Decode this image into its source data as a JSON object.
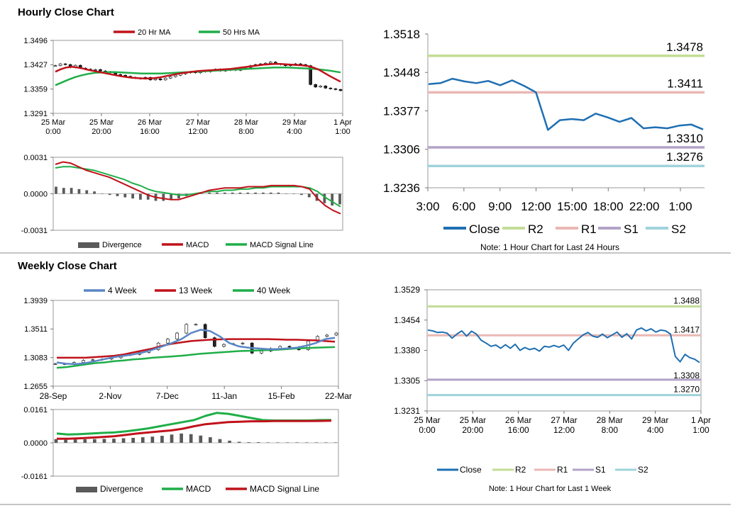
{
  "sections": {
    "hourly_title": "Hourly Close Chart",
    "weekly_title": "Weekly Close Chart"
  },
  "colors": {
    "ma20": "#c0121b",
    "ma50": "#1fae48",
    "close": "#1f6fb2",
    "r2": "#c3dd96",
    "r1": "#eab8b4",
    "s1": "#b3a3c7",
    "s2": "#9fd3dc",
    "wk4": "#5a86c5",
    "divergence": "#5a5a5a",
    "candle": "#000000"
  },
  "chart_data": [
    {
      "id": "hourly_price",
      "type": "candlestick",
      "ylim": [
        1.3291,
        1.3496
      ],
      "y_ticks": [
        "1.3496",
        "1.3427",
        "1.3359",
        "1.3291"
      ],
      "x_ticks": [
        [
          "25 Mar",
          "0:00"
        ],
        [
          "25 Mar",
          "20:00"
        ],
        [
          "26 Mar",
          "16:00"
        ],
        [
          "27 Mar",
          "12:00"
        ],
        [
          "28 Mar",
          "8:00"
        ],
        [
          "29 Mar",
          "4:00"
        ],
        [
          "1 Apr",
          "1:00"
        ]
      ],
      "legend": [
        "20 Hr MA",
        "50 Hrs MA"
      ],
      "close": [
        1.3425,
        1.343,
        1.3428,
        1.342,
        1.3426,
        1.3418,
        1.3415,
        1.3412,
        1.3414,
        1.341,
        1.3408,
        1.3405,
        1.34,
        1.3398,
        1.3395,
        1.3392,
        1.339,
        1.3388,
        1.3392,
        1.3385,
        1.3388,
        1.3385,
        1.339,
        1.3394,
        1.3398,
        1.3402,
        1.3405,
        1.3408,
        1.3405,
        1.341,
        1.3408,
        1.3412,
        1.3415,
        1.341,
        1.3412,
        1.3415,
        1.3412,
        1.3418,
        1.342,
        1.3425,
        1.3428,
        1.343,
        1.3432,
        1.3435,
        1.343,
        1.3428,
        1.3425,
        1.3427,
        1.343,
        1.3428,
        1.3425,
        1.3372,
        1.3365,
        1.3368,
        1.3362,
        1.336,
        1.3358,
        1.3355
      ],
      "ma20": [
        1.3408,
        1.3415,
        1.342,
        1.3422,
        1.342,
        1.3417,
        1.3413,
        1.341,
        1.3407,
        1.3404,
        1.3401,
        1.3398,
        1.3395,
        1.3393,
        1.3391,
        1.339,
        1.3389,
        1.3389,
        1.339,
        1.3392,
        1.3395,
        1.3398,
        1.3401,
        1.3404,
        1.3406,
        1.3408,
        1.341,
        1.3411,
        1.3412,
        1.3413,
        1.3414,
        1.3415,
        1.3416,
        1.3418,
        1.342,
        1.3422,
        1.3424,
        1.3426,
        1.3428,
        1.3429,
        1.343,
        1.343,
        1.3429,
        1.3428,
        1.3427,
        1.3426,
        1.3424,
        1.342,
        1.3414,
        1.3405,
        1.3396,
        1.3388,
        1.338
      ],
      "ma50": [
        1.337,
        1.3378,
        1.3386,
        1.3393,
        1.3398,
        1.3402,
        1.3405,
        1.3406,
        1.3407,
        1.3407,
        1.3406,
        1.3405,
        1.3404,
        1.3403,
        1.3403,
        1.3403,
        1.3403,
        1.3404,
        1.3405,
        1.3406,
        1.3407,
        1.3408,
        1.3409,
        1.341,
        1.3411,
        1.3412,
        1.3413,
        1.3414,
        1.3415,
        1.3416,
        1.3417,
        1.3418,
        1.3419,
        1.342,
        1.342,
        1.342,
        1.3419,
        1.3418,
        1.3417,
        1.3416,
        1.3414,
        1.3412,
        1.3409,
        1.3406
      ]
    },
    {
      "id": "hourly_macd",
      "type": "line+bar",
      "ylim": [
        -0.0031,
        0.0031
      ],
      "y_ticks": [
        "0.0031",
        "0.0000",
        "-0.0031"
      ],
      "legend": [
        "Divergence",
        "MACD",
        "MACD Signal Line"
      ],
      "macd": [
        0.0025,
        0.0027,
        0.0026,
        0.0023,
        0.002,
        0.0018,
        0.0016,
        0.0014,
        0.0011,
        0.0008,
        0.0005,
        0.0002,
        -0.0001,
        -0.0003,
        -0.0004,
        -0.0005,
        -0.0005,
        -0.0003,
        -0.0001,
        0.0001,
        0.0003,
        0.0004,
        0.0005,
        0.0005,
        0.0005,
        0.0006,
        0.0006,
        0.0006,
        0.0007,
        0.0007,
        0.0007,
        0.0007,
        0.0006,
        0.0004,
        -0.0004,
        -0.001,
        -0.0014,
        -0.0017
      ],
      "signal": [
        0.0022,
        0.0023,
        0.0023,
        0.0022,
        0.0021,
        0.002,
        0.0018,
        0.0016,
        0.0014,
        0.0012,
        0.0009,
        0.0007,
        0.0004,
        0.0002,
        0.0001,
        0.0,
        -0.0001,
        -0.0001,
        0.0,
        0.0001,
        0.0002,
        0.0002,
        0.0003,
        0.0003,
        0.0004,
        0.0004,
        0.0005,
        0.0005,
        0.0006,
        0.0006,
        0.0006,
        0.0006,
        0.0006,
        0.0005,
        0.0002,
        -0.0003,
        -0.0007,
        -0.0011
      ],
      "divergence": [
        0.0006,
        0.0005,
        0.0005,
        0.0004,
        0.0003,
        0.0002,
        0.0,
        -0.0001,
        -0.0002,
        -0.0003,
        -0.0004,
        -0.0005,
        -0.0005,
        -0.0006,
        -0.0006,
        -0.0005,
        -0.0004,
        -0.0002,
        -0.0001,
        0.0,
        0.0001,
        0.0001,
        0.0001,
        0.0001,
        0.0001,
        0.0001,
        0.0001,
        0.0001,
        0.0001,
        0.0001,
        0.0,
        0.0,
        -0.0001,
        -0.0003,
        -0.0006,
        -0.0008,
        -0.001,
        -0.0009
      ]
    },
    {
      "id": "hourly_24h",
      "type": "line",
      "ylim": [
        1.3236,
        1.3518
      ],
      "y_ticks": [
        "1.3518",
        "1.3448",
        "1.3377",
        "1.3306",
        "1.3236"
      ],
      "x_ticks": [
        "3:00",
        "6:00",
        "9:00",
        "12:00",
        "15:00",
        "18:00",
        "22:00",
        "1:00"
      ],
      "close": [
        1.3426,
        1.3428,
        1.3436,
        1.3431,
        1.3428,
        1.3432,
        1.3424,
        1.3433,
        1.3423,
        1.3411,
        1.3342,
        1.336,
        1.3362,
        1.336,
        1.3372,
        1.3365,
        1.3357,
        1.3364,
        1.3345,
        1.3347,
        1.3345,
        1.335,
        1.3352,
        1.3343
      ],
      "levels": [
        {
          "name": "R2",
          "value": 1.3478,
          "label": "1.3478"
        },
        {
          "name": "R1",
          "value": 1.3411,
          "label": "1.3411"
        },
        {
          "name": "S1",
          "value": 1.331,
          "label": "1.3310"
        },
        {
          "name": "S2",
          "value": 1.3276,
          "label": "1.3276"
        }
      ],
      "legend": [
        "Close",
        "R2",
        "R1",
        "S1",
        "S2"
      ],
      "note": "Note: 1 Hour Chart for Last 24 Hours"
    },
    {
      "id": "weekly_price",
      "type": "candlestick",
      "ylim": [
        1.2655,
        1.3939
      ],
      "y_ticks": [
        "1.3939",
        "1.3511",
        "1.3083",
        "1.2655"
      ],
      "x_ticks": [
        "28-Sep",
        "2-Nov",
        "7-Dec",
        "11-Jan",
        "15-Feb",
        "22-Mar"
      ],
      "legend": [
        "4 Week",
        "13 Week",
        "40 Week"
      ],
      "close": [
        1.299,
        1.2985,
        1.301,
        1.304,
        1.305,
        1.306,
        1.308,
        1.312,
        1.313,
        1.316,
        1.32,
        1.33,
        1.336,
        1.345,
        1.358,
        1.358,
        1.338,
        1.325,
        1.328,
        1.329,
        1.33,
        1.315,
        1.318,
        1.322,
        1.325,
        1.324,
        1.32,
        1.333,
        1.34,
        1.342,
        1.345
      ],
      "wk4": [
        1.301,
        1.299,
        1.2985,
        1.3,
        1.303,
        1.306,
        1.309,
        1.311,
        1.313,
        1.316,
        1.32,
        1.325,
        1.33,
        1.336,
        1.345,
        1.35,
        1.348,
        1.34,
        1.33,
        1.325,
        1.323,
        1.322,
        1.321,
        1.321,
        1.322,
        1.323,
        1.326,
        1.33,
        1.336,
        1.338
      ],
      "wk13": [
        1.308,
        1.308,
        1.308,
        1.308,
        1.309,
        1.31,
        1.311,
        1.313,
        1.316,
        1.319,
        1.322,
        1.326,
        1.329,
        1.331,
        1.333,
        1.334,
        1.335,
        1.3355,
        1.336,
        1.336,
        1.336,
        1.336,
        1.336,
        1.3355,
        1.335,
        1.335,
        1.3345,
        1.334,
        1.333,
        1.332
      ],
      "wk40": [
        1.293,
        1.294,
        1.296,
        1.298,
        1.3,
        1.301,
        1.303,
        1.304,
        1.3055,
        1.3065,
        1.308,
        1.309,
        1.31,
        1.311,
        1.3125,
        1.314,
        1.315,
        1.316,
        1.317,
        1.318,
        1.3185,
        1.319,
        1.3195,
        1.32,
        1.321,
        1.322,
        1.3225,
        1.323,
        1.3235,
        1.324
      ]
    },
    {
      "id": "weekly_macd",
      "type": "line+bar",
      "ylim": [
        -0.0161,
        0.0161
      ],
      "y_ticks": [
        "0.0161",
        "0.0000",
        "-0.0161"
      ],
      "legend": [
        "Divergence",
        "MACD",
        "MACD Signal Line"
      ],
      "macd": [
        0.0045,
        0.004,
        0.0042,
        0.0045,
        0.0048,
        0.005,
        0.0055,
        0.0062,
        0.007,
        0.008,
        0.009,
        0.01,
        0.011,
        0.013,
        0.0145,
        0.014,
        0.013,
        0.012,
        0.011,
        0.0108,
        0.0108,
        0.0108,
        0.0108,
        0.011,
        0.011
      ],
      "signal": [
        0.002,
        0.002,
        0.0022,
        0.0025,
        0.0028,
        0.0032,
        0.0038,
        0.0045,
        0.005,
        0.0055,
        0.006,
        0.0068,
        0.008,
        0.009,
        0.0095,
        0.01,
        0.0102,
        0.0104,
        0.0104,
        0.0105,
        0.0105,
        0.0105,
        0.0105,
        0.0106,
        0.0107
      ],
      "divergence": [
        0.0018,
        0.0015,
        0.0016,
        0.0017,
        0.0018,
        0.0019,
        0.002,
        0.0022,
        0.0024,
        0.0027,
        0.003,
        0.0034,
        0.004,
        0.0045,
        0.0042,
        0.0035,
        0.0027,
        0.0018,
        0.001,
        0.0005,
        0.0003,
        0.0003,
        0.0002,
        0.0002,
        0.0002,
        0.0002,
        0.0002,
        0.0002,
        0.0002,
        0.0002
      ]
    },
    {
      "id": "weekly_1h",
      "type": "line",
      "ylim": [
        1.3231,
        1.3529
      ],
      "y_ticks": [
        "1.3529",
        "1.3454",
        "1.3380",
        "1.3305",
        "1.3231"
      ],
      "x_ticks": [
        [
          "25 Mar",
          "0:00"
        ],
        [
          "25 Mar",
          "20:00"
        ],
        [
          "26 Mar",
          "16:00"
        ],
        [
          "27 Mar",
          "12:00"
        ],
        [
          "28 Mar",
          "8:00"
        ],
        [
          "29 Mar",
          "4:00"
        ],
        [
          "1 Apr",
          "1:00"
        ]
      ],
      "close": [
        1.343,
        1.3428,
        1.3424,
        1.3425,
        1.3422,
        1.341,
        1.342,
        1.3428,
        1.3415,
        1.3427,
        1.342,
        1.3405,
        1.3398,
        1.339,
        1.3393,
        1.3385,
        1.3394,
        1.3385,
        1.3395,
        1.338,
        1.3387,
        1.3382,
        1.3385,
        1.3378,
        1.339,
        1.3388,
        1.3392,
        1.3388,
        1.3393,
        1.338,
        1.3398,
        1.3408,
        1.3418,
        1.3424,
        1.3415,
        1.3412,
        1.342,
        1.3411,
        1.3418,
        1.3425,
        1.3412,
        1.3421,
        1.3408,
        1.343,
        1.3435,
        1.3428,
        1.3433,
        1.3425,
        1.343,
        1.3428,
        1.342,
        1.3365,
        1.3352,
        1.337,
        1.3362,
        1.3358,
        1.335
      ],
      "levels": [
        {
          "name": "R2",
          "value": 1.3488,
          "label": "1.3488"
        },
        {
          "name": "R1",
          "value": 1.3417,
          "label": "1.3417"
        },
        {
          "name": "S1",
          "value": 1.3308,
          "label": "1.3308"
        },
        {
          "name": "S2",
          "value": 1.327,
          "label": "1.3270"
        }
      ],
      "legend": [
        "Close",
        "R2",
        "R1",
        "S1",
        "S2"
      ],
      "note": "Note: 1 Hour Chart for  Last 1 Week"
    }
  ]
}
